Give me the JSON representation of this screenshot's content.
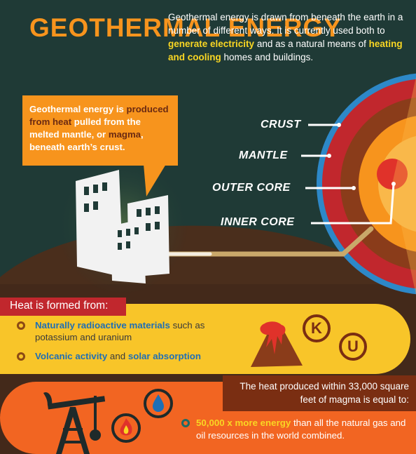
{
  "header": {
    "title": "GEOTHERMAL ENERGY",
    "intro_text_1": "Geothermal energy is drawn from beneath the earth in a number of different ways. It is currently used both to ",
    "intro_highlight_1": "generate electricity",
    "intro_text_2": " and as a natural means of ",
    "intro_highlight_2": "heating and cooling",
    "intro_text_3": " homes and buildings."
  },
  "bubble": {
    "text_1": "Geothermal energy is ",
    "highlight_1": "produced from heat",
    "text_2": " pulled from the melted mantle, or ",
    "highlight_2": "magma",
    "text_3": ", beneath earth’s crust."
  },
  "earth_layers": {
    "crust": "CRUST",
    "mantle": "MANTLE",
    "outer_core": "OUTER CORE",
    "inner_core": "INNER CORE"
  },
  "heat_source": {
    "title": "Heat is formed from:",
    "item1_highlight": "Naturally radioactive materials",
    "item1_text": " such as potassium and uranium",
    "item2_highlight_1": "Volcanic activity",
    "item2_text": " and ",
    "item2_highlight_2": "solar absorption",
    "potassium_symbol": "K",
    "uranium_symbol": "U"
  },
  "energy_comparison": {
    "heat_produced": "The heat produced within 33,000 square feet of magma is equal to:",
    "highlight": "50,000 x more energy",
    "text": " than all the natural gas and oil resources in the world combined."
  },
  "colors": {
    "background": "#1f3a36",
    "orange": "#f7941d",
    "yellow": "#f9d623",
    "red": "#c1272d",
    "panel_yellow": "#f8c529",
    "bottom_orange": "#f26522",
    "brown": "#7a2e12",
    "blue": "#1f6fb5"
  }
}
